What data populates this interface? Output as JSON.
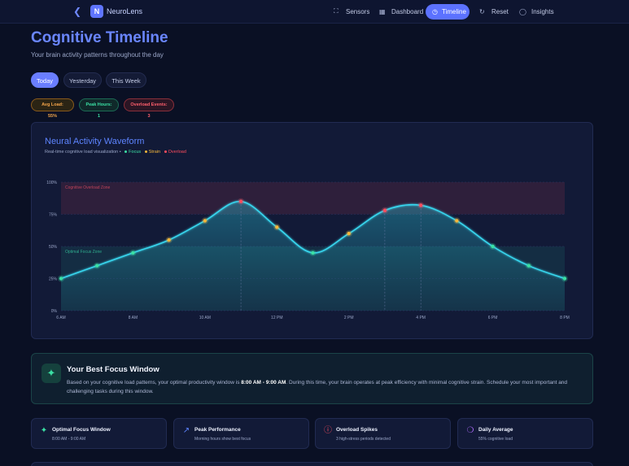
{
  "app": {
    "name": "NeuroLens",
    "logo_letter": "N"
  },
  "nav": [
    {
      "label": "Sensors",
      "icon": "scan-icon",
      "active": false
    },
    {
      "label": "Dashboard",
      "icon": "grid-icon",
      "active": false
    },
    {
      "label": "Timeline",
      "icon": "clock-icon",
      "active": true
    },
    {
      "label": "Reset",
      "icon": "refresh-icon",
      "active": false
    },
    {
      "label": "Insights",
      "icon": "lightbulb-icon",
      "active": false
    }
  ],
  "page": {
    "title": "Cognitive Timeline",
    "subtitle": "Your brain activity patterns throughout the day"
  },
  "day_tabs": [
    {
      "label": "Today",
      "active": true
    },
    {
      "label": "Yesterday",
      "active": false
    },
    {
      "label": "This Week",
      "active": false
    }
  ],
  "badges": [
    {
      "label": "Avg Load: 55%",
      "tone": "orange"
    },
    {
      "label": "Peak Hours: 1",
      "tone": "green"
    },
    {
      "label": "Overload Events: 3",
      "tone": "red"
    }
  ],
  "chart": {
    "title": "Neural Activity Waveform",
    "subtitle": "Real-time cognitive load visualization •",
    "legend": [
      {
        "label": "Focus",
        "color": "#3be0a4"
      },
      {
        "label": "Strain",
        "color": "#f5b63a"
      },
      {
        "label": "Overload",
        "color": "#ff4d5e"
      }
    ],
    "zones": {
      "overload": "Cognitive Overload Zone",
      "focus": "Optimal Focus Zone"
    }
  },
  "chart_data": {
    "type": "line",
    "x": [
      "6 AM",
      "7 AM",
      "8 AM",
      "9 AM",
      "10 AM",
      "11 AM",
      "12 PM",
      "1 PM",
      "2 PM",
      "3 PM",
      "4 PM",
      "5 PM",
      "6 PM",
      "7 PM",
      "8 PM"
    ],
    "x_tick_labels": [
      "6 AM",
      "8 AM",
      "10 AM",
      "12 PM",
      "2 PM",
      "4 PM",
      "6 PM",
      "8 PM"
    ],
    "series": [
      {
        "values": [
          25,
          35,
          45,
          55,
          70,
          85,
          65,
          45,
          60,
          78,
          82,
          70,
          50,
          35,
          25
        ]
      }
    ],
    "point_status": [
      "focus",
      "focus",
      "focus",
      "strain",
      "strain",
      "overload",
      "strain",
      "focus",
      "strain",
      "overload",
      "overload",
      "strain",
      "focus",
      "focus",
      "focus"
    ],
    "ylim": [
      0,
      100
    ],
    "yticks": [
      "0%",
      "25%",
      "50%",
      "75%",
      "100%"
    ],
    "zones": [
      {
        "name": "Cognitive Overload Zone",
        "from": 75,
        "to": 100
      },
      {
        "name": "Optimal Focus Zone",
        "from": 0,
        "to": 50
      }
    ],
    "grid": true
  },
  "focus_window": {
    "title": "Your Best Focus Window",
    "text_before": "Based on your cognitive load patterns, your optimal productivity window is ",
    "highlight": "8:00 AM - 9:00 AM",
    "text_after": ". During this time, your brain operates at peak efficiency with minimal cognitive strain. Schedule your most important and challenging tasks during this window."
  },
  "stats": [
    {
      "title": "Optimal Focus Window",
      "sub": "8:00 AM - 9:00 AM",
      "icon": "sparkle-icon",
      "color": "#3be0a4"
    },
    {
      "title": "Peak Performance",
      "sub": "Morning hours show best focus",
      "icon": "trend-up-icon",
      "color": "#5d84ff"
    },
    {
      "title": "Overload Spikes",
      "sub": "3 high-stress periods detected",
      "icon": "alert-circle-icon",
      "color": "#ff4d5e"
    },
    {
      "title": "Daily Average",
      "sub": "55% cognitive load",
      "icon": "brain-icon",
      "color": "#b06bff"
    }
  ]
}
